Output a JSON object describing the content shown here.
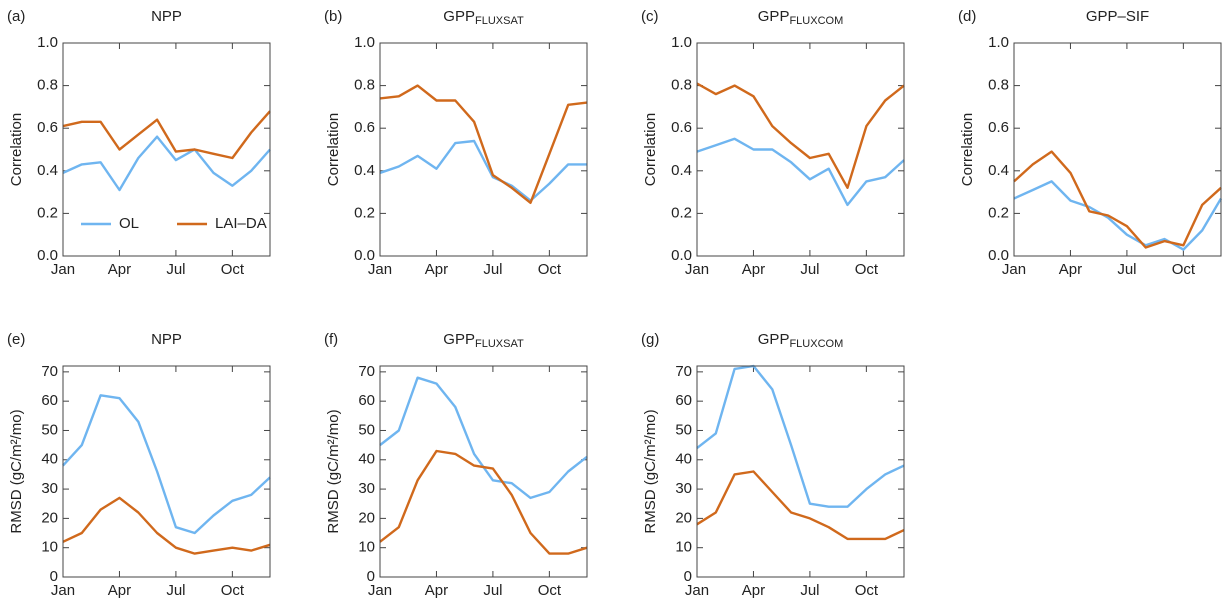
{
  "chart_data": [
    {
      "type": "line",
      "panel": "(a)",
      "title": "NPP",
      "ylabel": "Correlation",
      "categories": [
        "Jan",
        null,
        null,
        "Apr",
        null,
        null,
        "Jul",
        null,
        null,
        "Oct",
        null,
        null
      ],
      "series": [
        {
          "name": "OL",
          "color": "#6fb5f0",
          "values": [
            0.39,
            0.43,
            0.44,
            0.31,
            0.46,
            0.56,
            0.45,
            0.5,
            0.39,
            0.33,
            0.4,
            0.5
          ]
        },
        {
          "name": "LAI–DA",
          "color": "#d0691c",
          "values": [
            0.61,
            0.63,
            0.63,
            0.5,
            0.57,
            0.64,
            0.49,
            0.5,
            0.48,
            0.46,
            0.58,
            0.68
          ]
        }
      ],
      "ylim": [
        0,
        1
      ],
      "yticks": [
        {
          "value": 0,
          "label": "0.0"
        },
        0.2,
        0.4,
        0.6,
        0.8,
        {
          "value": 1,
          "label": "1.0"
        }
      ],
      "legend": "lower left"
    },
    {
      "type": "line",
      "panel": "(b)",
      "title": "GPP",
      "title_sub": "FLUXSAT",
      "ylabel": "Correlation",
      "categories": [
        "Jan",
        null,
        null,
        "Apr",
        null,
        null,
        "Jul",
        null,
        null,
        "Oct",
        null,
        null
      ],
      "series": [
        {
          "name": "OL",
          "color": "#6fb5f0",
          "values": [
            0.39,
            0.42,
            0.47,
            0.41,
            0.53,
            0.54,
            0.37,
            0.33,
            0.26,
            0.34,
            0.43,
            0.43
          ]
        },
        {
          "name": "LAI–DA",
          "color": "#d0691c",
          "values": [
            0.74,
            0.75,
            0.8,
            0.73,
            0.73,
            0.63,
            0.38,
            0.32,
            0.25,
            0.48,
            0.71,
            0.72
          ]
        }
      ],
      "ylim": [
        0,
        1
      ],
      "yticks": [
        {
          "value": 0,
          "label": "0.0"
        },
        0.2,
        0.4,
        0.6,
        0.8,
        {
          "value": 1,
          "label": "1.0"
        }
      ]
    },
    {
      "type": "line",
      "panel": "(c)",
      "title": "GPP",
      "title_sub": "FLUXCOM",
      "ylabel": "Correlation",
      "categories": [
        "Jan",
        null,
        null,
        "Apr",
        null,
        null,
        "Jul",
        null,
        null,
        "Oct",
        null,
        null
      ],
      "series": [
        {
          "name": "OL",
          "color": "#6fb5f0",
          "values": [
            0.49,
            0.52,
            0.55,
            0.5,
            0.5,
            0.44,
            0.36,
            0.41,
            0.24,
            0.35,
            0.37,
            0.45
          ]
        },
        {
          "name": "LAI–DA",
          "color": "#d0691c",
          "values": [
            0.81,
            0.76,
            0.8,
            0.75,
            0.61,
            0.53,
            0.46,
            0.48,
            0.32,
            0.61,
            0.73,
            0.8
          ]
        }
      ],
      "ylim": [
        0,
        1
      ],
      "yticks": [
        {
          "value": 0,
          "label": "0.0"
        },
        0.2,
        0.4,
        0.6,
        0.8,
        {
          "value": 1,
          "label": "1.0"
        }
      ]
    },
    {
      "type": "line",
      "panel": "(d)",
      "title": "GPP–SIF",
      "ylabel": "Correlation",
      "categories": [
        "Jan",
        null,
        null,
        "Apr",
        null,
        null,
        "Jul",
        null,
        null,
        "Oct",
        null,
        null
      ],
      "series": [
        {
          "name": "OL",
          "color": "#6fb5f0",
          "values": [
            0.27,
            0.31,
            0.35,
            0.26,
            0.23,
            0.18,
            0.1,
            0.05,
            0.08,
            0.03,
            0.12,
            0.27
          ]
        },
        {
          "name": "LAI–DA",
          "color": "#d0691c",
          "values": [
            0.35,
            0.43,
            0.49,
            0.39,
            0.21,
            0.19,
            0.14,
            0.04,
            0.07,
            0.05,
            0.24,
            0.32
          ]
        }
      ],
      "ylim": [
        0,
        1
      ],
      "yticks": [
        {
          "value": 0,
          "label": "0.0"
        },
        0.2,
        0.4,
        0.6,
        0.8,
        {
          "value": 1,
          "label": "1.0"
        }
      ]
    },
    {
      "type": "line",
      "panel": "(e)",
      "title": "NPP",
      "ylabel": "RMSD (gC/m²/mo)",
      "categories": [
        "Jan",
        null,
        null,
        "Apr",
        null,
        null,
        "Jul",
        null,
        null,
        "Oct",
        null,
        null
      ],
      "series": [
        {
          "name": "OL",
          "color": "#6fb5f0",
          "values": [
            38,
            45,
            62,
            61,
            53,
            36,
            17,
            15,
            21,
            26,
            28,
            34
          ]
        },
        {
          "name": "LAI–DA",
          "color": "#d0691c",
          "values": [
            12,
            15,
            23,
            27,
            22,
            15,
            10,
            8,
            9,
            10,
            9,
            11
          ]
        }
      ],
      "ylim": [
        0,
        72
      ],
      "yticks": [
        0,
        10,
        20,
        30,
        40,
        50,
        60,
        70
      ]
    },
    {
      "type": "line",
      "panel": "(f)",
      "title": "GPP",
      "title_sub": "FLUXSAT",
      "ylabel": "RMSD (gC/m²/mo)",
      "categories": [
        "Jan",
        null,
        null,
        "Apr",
        null,
        null,
        "Jul",
        null,
        null,
        "Oct",
        null,
        null
      ],
      "series": [
        {
          "name": "OL",
          "color": "#6fb5f0",
          "values": [
            45,
            50,
            68,
            66,
            58,
            42,
            33,
            32,
            27,
            29,
            36,
            41
          ]
        },
        {
          "name": "LAI–DA",
          "color": "#d0691c",
          "values": [
            12,
            17,
            33,
            43,
            42,
            38,
            37,
            28,
            15,
            8,
            8,
            10
          ]
        }
      ],
      "ylim": [
        0,
        72
      ],
      "yticks": [
        0,
        10,
        20,
        30,
        40,
        50,
        60,
        70
      ]
    },
    {
      "type": "line",
      "panel": "(g)",
      "title": "GPP",
      "title_sub": "FLUXCOM",
      "ylabel": "RMSD (gC/m²/mo)",
      "categories": [
        "Jan",
        null,
        null,
        "Apr",
        null,
        null,
        "Jul",
        null,
        null,
        "Oct",
        null,
        null
      ],
      "series": [
        {
          "name": "OL",
          "color": "#6fb5f0",
          "values": [
            44,
            49,
            71,
            72,
            64,
            45,
            25,
            24,
            24,
            30,
            35,
            38
          ]
        },
        {
          "name": "LAI–DA",
          "color": "#d0691c",
          "values": [
            18,
            22,
            35,
            36,
            29,
            22,
            20,
            17,
            13,
            13,
            13,
            16
          ]
        }
      ],
      "ylim": [
        0,
        72
      ],
      "yticks": [
        0,
        10,
        20,
        30,
        40,
        50,
        60,
        70
      ]
    }
  ]
}
